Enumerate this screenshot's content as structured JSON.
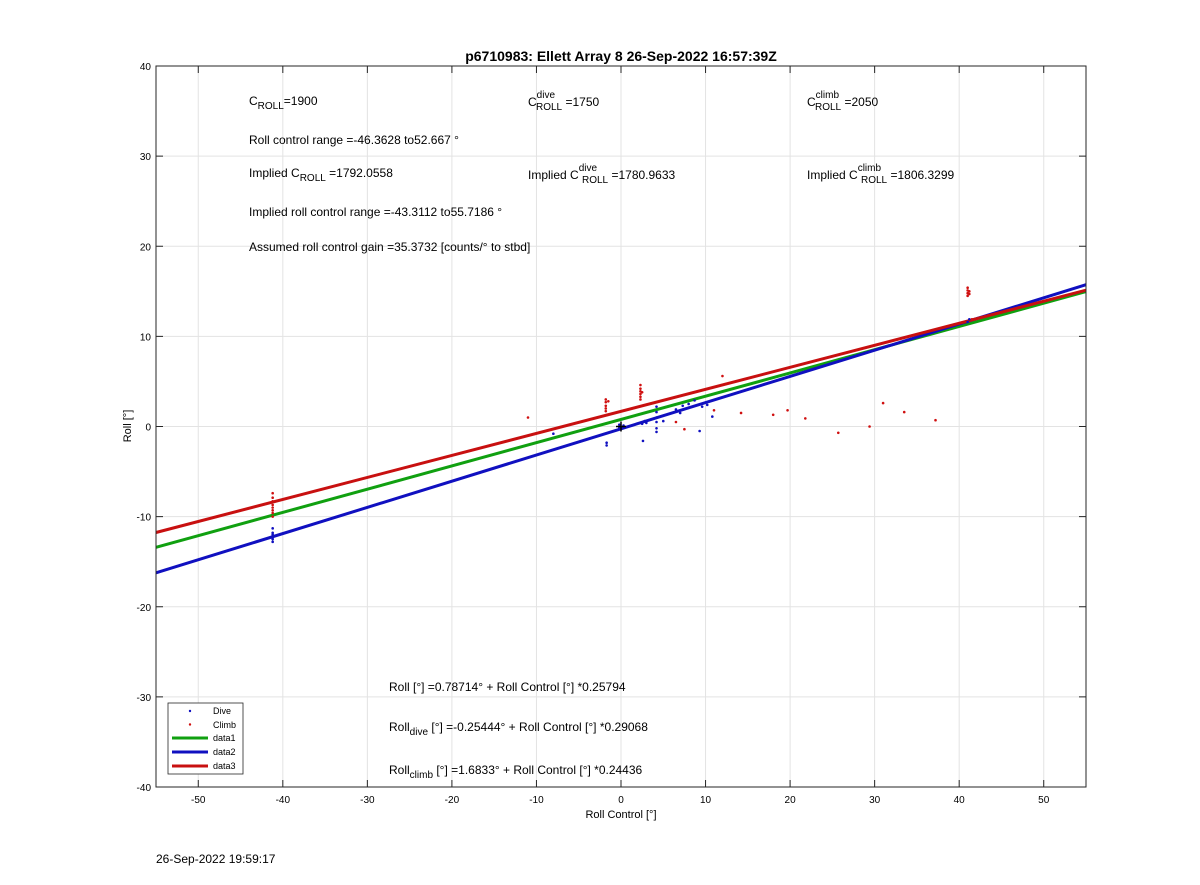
{
  "chart_data": {
    "type": "scatter",
    "title": "p6710983: Ellett Array 8 26-Sep-2022 16:57:39Z",
    "xlabel": "Roll Control [°]",
    "ylabel": "Roll [°]",
    "xlim": [
      -55,
      55
    ],
    "ylim": [
      -40,
      40
    ],
    "xticks": [
      -50,
      -40,
      -30,
      -20,
      -10,
      0,
      10,
      20,
      30,
      40,
      50
    ],
    "yticks": [
      -40,
      -30,
      -20,
      -10,
      0,
      10,
      20,
      30,
      40
    ],
    "grid": true,
    "legend_position": "bottom-left",
    "colors": {
      "dive": "#1010c0",
      "climb": "#d01010",
      "data1": "#10a010",
      "data2": "#1010c0",
      "data3": "#c81010"
    },
    "series": [
      {
        "name": "Dive",
        "kind": "points",
        "color": "#1010c0",
        "points": [
          [
            -41.2,
            -11.3
          ],
          [
            -41.2,
            -12.0
          ],
          [
            -41.2,
            -12.3
          ],
          [
            -41.2,
            -12.5
          ],
          [
            -41.2,
            -12.8
          ],
          [
            -41.2,
            -11.8
          ],
          [
            -8,
            -0.8
          ],
          [
            -1.7,
            -1.8
          ],
          [
            -1.7,
            -2.1
          ],
          [
            -0.2,
            -0.1
          ],
          [
            -0.2,
            -0.3
          ],
          [
            -0.2,
            0.2
          ],
          [
            0.1,
            -0.2
          ],
          [
            0.3,
            0.1
          ],
          [
            2.5,
            0.3
          ],
          [
            2.6,
            -1.6
          ],
          [
            2.8,
            0.6
          ],
          [
            3.0,
            0.4
          ],
          [
            4.2,
            2.2
          ],
          [
            4.2,
            1.6
          ],
          [
            4.2,
            1.0
          ],
          [
            4.2,
            0.5
          ],
          [
            4.2,
            -0.2
          ],
          [
            4.2,
            -0.6
          ],
          [
            5,
            0.6
          ],
          [
            6.5,
            1.9
          ],
          [
            7,
            1.5
          ],
          [
            7.3,
            2.3
          ],
          [
            8,
            2.5
          ],
          [
            8.7,
            2.9
          ],
          [
            9.3,
            -0.5
          ],
          [
            9.6,
            2.2
          ],
          [
            10.2,
            2.4
          ],
          [
            10.8,
            1.1
          ],
          [
            41,
            11.6
          ],
          [
            41.2,
            11.9
          ]
        ]
      },
      {
        "name": "Climb",
        "kind": "points",
        "color": "#d01010",
        "points": [
          [
            -41.2,
            -7.4
          ],
          [
            -41.2,
            -7.9
          ],
          [
            -41.2,
            -8.3
          ],
          [
            -41.2,
            -8.7
          ],
          [
            -41.2,
            -9.0
          ],
          [
            -41.2,
            -9.3
          ],
          [
            -41.2,
            -9.6
          ],
          [
            -41.2,
            -10.0
          ],
          [
            -11,
            1.0
          ],
          [
            -1.8,
            3.0
          ],
          [
            -1.8,
            2.7
          ],
          [
            -1.8,
            2.3
          ],
          [
            -1.8,
            2.0
          ],
          [
            -1.8,
            1.7
          ],
          [
            -1.5,
            2.8
          ],
          [
            2.3,
            4.6
          ],
          [
            2.3,
            4.2
          ],
          [
            2.3,
            3.9
          ],
          [
            2.3,
            3.6
          ],
          [
            2.3,
            3.3
          ],
          [
            2.3,
            3.0
          ],
          [
            2.5,
            3.8
          ],
          [
            6.5,
            0.5
          ],
          [
            7.5,
            -0.3
          ],
          [
            11,
            1.8
          ],
          [
            12,
            5.6
          ],
          [
            14.2,
            1.5
          ],
          [
            18,
            1.3
          ],
          [
            19.7,
            1.8
          ],
          [
            21.8,
            0.9
          ],
          [
            25.7,
            -0.7
          ],
          [
            29.4,
            0.0
          ],
          [
            31,
            2.6
          ],
          [
            33.5,
            1.6
          ],
          [
            37.2,
            0.7
          ],
          [
            41,
            15.4
          ],
          [
            41,
            15.1
          ],
          [
            41,
            14.8
          ],
          [
            41,
            14.5
          ],
          [
            41.2,
            15.0
          ],
          [
            41.2,
            14.7
          ],
          [
            41.5,
            11.9
          ]
        ]
      },
      {
        "name": "data1",
        "kind": "line",
        "color": "#10a010",
        "x": [
          -55,
          55
        ],
        "y": [
          -13.4,
          14.97
        ]
      },
      {
        "name": "data2",
        "kind": "line",
        "color": "#1010c0",
        "x": [
          -55,
          55
        ],
        "y": [
          -16.24,
          15.73
        ]
      },
      {
        "name": "data3",
        "kind": "line",
        "color": "#c81010",
        "x": [
          -55,
          55
        ],
        "y": [
          -11.76,
          15.12
        ]
      }
    ],
    "annotations": {
      "c_roll": {
        "main": "C",
        "sub": "ROLL",
        "rest": "=1900"
      },
      "c_roll_dive": {
        "main": "C",
        "sub": "ROLL",
        "sup": "dive",
        "rest": " =1750"
      },
      "c_roll_climb": {
        "main": "C",
        "sub": "ROLL",
        "sup": "climb",
        "rest": " =2050"
      },
      "roll_control_range": "Roll control range =-46.3628 to52.667 °",
      "implied_c_roll": {
        "prefix": "Implied C",
        "sub": "ROLL",
        "rest": " =1792.0558"
      },
      "implied_c_roll_dive": {
        "prefix": "Implied C",
        "sub": "ROLL",
        "sup": "dive",
        "rest": " =1780.9633"
      },
      "implied_c_roll_climb": {
        "prefix": "Implied C",
        "sub": "ROLL",
        "sup": "climb",
        "rest": " =1806.3299"
      },
      "implied_roll_control_range": "Implied roll control range =-43.3112 to55.7186 °",
      "assumed_gain": "Assumed roll control gain =35.3732 [counts/° to stbd]",
      "fit_all": {
        "prefix": "Roll [°] =0.78714° + Roll Control [°] *0.25794"
      },
      "fit_dive": {
        "prefix": "Roll",
        "sub": "dive",
        "rest": " [°] =-0.25444° + Roll Control [°] *0.29068"
      },
      "fit_climb": {
        "prefix": "Roll",
        "sub": "climb",
        "rest": " [°] =1.6833° + Roll Control [°] *0.24436"
      }
    }
  },
  "footer": {
    "timestamp": "26-Sep-2022 19:59:17"
  }
}
